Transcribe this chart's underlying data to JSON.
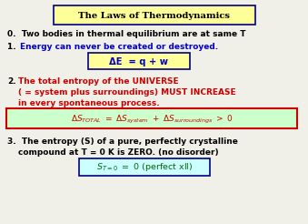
{
  "title": "The Laws of Thermodynamics",
  "title_bg": "#FFFF99",
  "title_border": "#000080",
  "bg_color": "#F0F0E8",
  "law0": "0.  Two bodies in thermal equilibrium are at same T",
  "law1_num": "1.",
  "law1_text": "  Energy can never be created or destroyed.",
  "eq1_bg": "#FFFF99",
  "eq1_border": "#000080",
  "law2_num": "2.",
  "law2_line1": "  The total entropy of the UNIVERSE",
  "law2_line2": "    ( = system plus surroundings) MUST INCREASE",
  "law2_line3": "    in every spontaneous process.",
  "eq2_bg": "#CCFFCC",
  "eq2_border": "#CC0000",
  "law3_line1": "3.  The entropy (S) of a pure, perfectly crystalline",
  "law3_line2": "    compound at T = 0 K is ZERO. (no disorder)",
  "eq3_bg": "#CCFFFF",
  "eq3_border": "#000080",
  "color_black": "#000000",
  "color_darkblue": "#000066",
  "color_blue": "#0000CC",
  "color_red": "#CC0000",
  "color_green": "#006600"
}
